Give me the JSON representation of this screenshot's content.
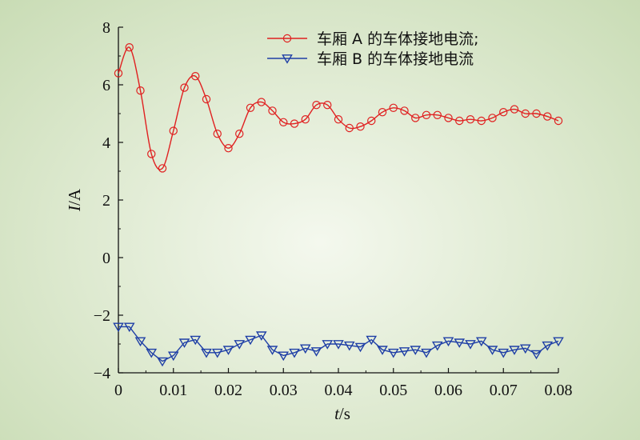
{
  "chart_data": {
    "type": "line",
    "xlabel": {
      "var": "t",
      "unit": "/s"
    },
    "ylabel": {
      "var": "I",
      "unit": "/A"
    },
    "xlim": [
      0,
      0.08
    ],
    "ylim": [
      -4,
      8
    ],
    "xticks": [
      0,
      0.01,
      0.02,
      0.03,
      0.04,
      0.05,
      0.06,
      0.07,
      0.08
    ],
    "xtick_labels": [
      "0",
      "0.01",
      "0.02",
      "0.03",
      "0.04",
      "0.05",
      "0.06",
      "0.07",
      "0.08"
    ],
    "yticks": [
      -4,
      -2,
      0,
      2,
      4,
      6,
      8
    ],
    "ytick_labels": [
      "−4",
      "−2",
      "0",
      "2",
      "4",
      "6",
      "8"
    ],
    "grid": false,
    "legend_position": "top-right",
    "series": [
      {
        "name": "车厢 A 的车体接地电流;",
        "color": "#e02020",
        "marker": "circle",
        "x": [
          0,
          0.002,
          0.004,
          0.006,
          0.008,
          0.01,
          0.012,
          0.014,
          0.016,
          0.018,
          0.02,
          0.022,
          0.024,
          0.026,
          0.028,
          0.03,
          0.032,
          0.034,
          0.036,
          0.038,
          0.04,
          0.042,
          0.044,
          0.046,
          0.048,
          0.05,
          0.052,
          0.054,
          0.056,
          0.058,
          0.06,
          0.062,
          0.064,
          0.066,
          0.068,
          0.07,
          0.072,
          0.074,
          0.076,
          0.078,
          0.08
        ],
        "y": [
          6.4,
          7.3,
          5.8,
          3.6,
          3.1,
          4.4,
          5.9,
          6.3,
          5.5,
          4.3,
          3.8,
          4.3,
          5.2,
          5.4,
          5.1,
          4.7,
          4.65,
          4.8,
          5.3,
          5.3,
          4.8,
          4.5,
          4.55,
          4.75,
          5.05,
          5.2,
          5.1,
          4.85,
          4.95,
          4.95,
          4.85,
          4.75,
          4.8,
          4.75,
          4.85,
          5.05,
          5.15,
          5.0,
          5.0,
          4.9,
          4.75
        ]
      },
      {
        "name": "车厢 B 的车体接地电流",
        "color": "#1f3fa6",
        "marker": "triangle-down",
        "x": [
          0,
          0.002,
          0.004,
          0.006,
          0.008,
          0.01,
          0.012,
          0.014,
          0.016,
          0.018,
          0.02,
          0.022,
          0.024,
          0.026,
          0.028,
          0.03,
          0.032,
          0.034,
          0.036,
          0.038,
          0.04,
          0.042,
          0.044,
          0.046,
          0.048,
          0.05,
          0.052,
          0.054,
          0.056,
          0.058,
          0.06,
          0.062,
          0.064,
          0.066,
          0.068,
          0.07,
          0.072,
          0.074,
          0.076,
          0.078,
          0.08
        ],
        "y": [
          -2.4,
          -2.4,
          -2.9,
          -3.3,
          -3.6,
          -3.4,
          -2.95,
          -2.85,
          -3.3,
          -3.3,
          -3.2,
          -3.0,
          -2.85,
          -2.7,
          -3.2,
          -3.4,
          -3.3,
          -3.15,
          -3.25,
          -3.0,
          -3.0,
          -3.05,
          -3.1,
          -2.85,
          -3.2,
          -3.3,
          -3.25,
          -3.2,
          -3.3,
          -3.05,
          -2.9,
          -2.95,
          -3.0,
          -2.9,
          -3.2,
          -3.3,
          -3.2,
          -3.15,
          -3.35,
          -3.05,
          -2.9
        ]
      }
    ]
  }
}
